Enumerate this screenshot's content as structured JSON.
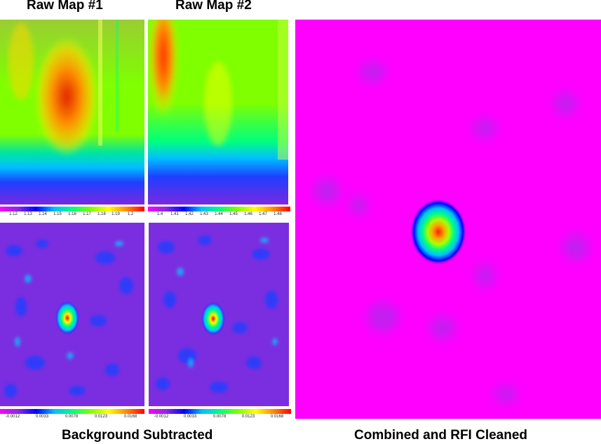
{
  "titles": {
    "raw1": "Raw Map #1",
    "raw2": "Raw Map #2",
    "background": "Background Subtracted",
    "combined": "Combined and RFI Cleaned"
  },
  "colorbars": {
    "raw1": [
      "1.12",
      "1.13",
      "1.14",
      "1.15",
      "1.16",
      "1.17",
      "1.18",
      "1.19",
      "1.2"
    ],
    "raw2": [
      "1.4",
      "1.41",
      "1.42",
      "1.43",
      "1.44",
      "1.45",
      "1.46",
      "1.47",
      "1.48"
    ],
    "bg1": [
      "-0.0012",
      "0.0033",
      "0.0078",
      "0.0123",
      "0.0168"
    ],
    "bg2": [
      "-0.0012",
      "0.0033",
      "0.0078",
      "0.0123",
      "0.0168"
    ]
  },
  "colors": {
    "rainbow": [
      "#ff00ff",
      "#8a2be2",
      "#0000ff",
      "#00bfff",
      "#00ff7f",
      "#7fff00",
      "#ffff00",
      "#ff8c00",
      "#ff0000"
    ],
    "combined_bg": "#ff00ff"
  }
}
